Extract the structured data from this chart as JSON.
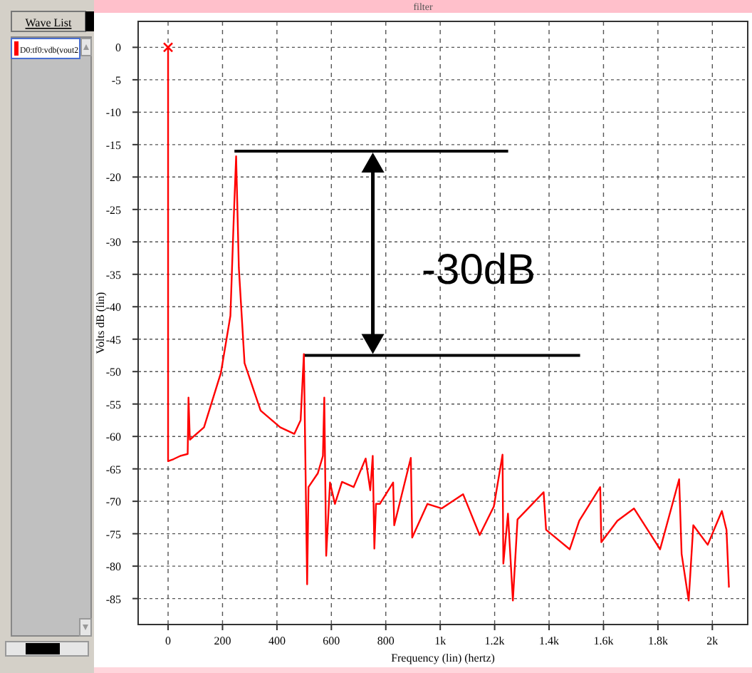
{
  "chart_data": {
    "type": "line",
    "title": "filter",
    "xlabel": "Frequency (lin) (hertz)",
    "ylabel": "Volts dB (lin)",
    "legend_title": "Wave List",
    "legend": "left",
    "grid": true,
    "marker": "none",
    "line_style": "solid",
    "xlim": [
      -110,
      2130
    ],
    "xticks": [
      0,
      200,
      400,
      600,
      800,
      {
        "value": 1000,
        "label": "1k"
      },
      {
        "value": 1200,
        "label": "1.2k"
      },
      {
        "value": 1400,
        "label": "1.4k"
      },
      {
        "value": 1600,
        "label": "1.6k"
      },
      {
        "value": 1800,
        "label": "1.8k"
      },
      {
        "value": 2000,
        "label": "2k"
      }
    ],
    "ylim": [
      -89,
      4
    ],
    "ref_lines": [
      {
        "axis": "y",
        "value": -16,
        "color": "#000000"
      },
      {
        "axis": "y",
        "value": -47.5,
        "color": "#000000"
      }
    ],
    "yticks": [
      0,
      -5,
      -10,
      -15,
      -20,
      -25,
      -30,
      -35,
      -40,
      -45,
      -50,
      -55,
      -60,
      -65,
      -70,
      -75,
      -80,
      -85
    ],
    "annotations": [
      "-30dB"
    ],
    "series": [
      {
        "name": "D0:tf0:vdb(vout2",
        "color": "#ff0000",
        "x": [
          0,
          0,
          20,
          45,
          72,
          75,
          80,
          132,
          194,
          229,
          241,
          250,
          260,
          281,
          340,
          412,
          464,
          487,
          499,
          511,
          516,
          550,
          569,
          574,
          581,
          595,
          613,
          639,
          682,
          726,
          743,
          752,
          758,
          764,
          778,
          827,
          831,
          892,
          897,
          953,
          1005,
          1084,
          1145,
          1197,
          1229,
          1232,
          1249,
          1267,
          1284,
          1380,
          1389,
          1476,
          1511,
          1588,
          1592,
          1651,
          1712,
          1808,
          1878,
          1887,
          1913,
          1930,
          1983,
          2035,
          2052,
          2061
        ],
        "values": [
          0,
          -63.8,
          -63.5,
          -63,
          -62.7,
          -54,
          -60.5,
          -58.6,
          -50.2,
          -41.4,
          -26.7,
          -16.8,
          -34,
          -48.7,
          -56,
          -58.6,
          -59.6,
          -57.5,
          -47.3,
          -82.8,
          -67.8,
          -65.7,
          -63,
          -54,
          -78.4,
          -67.1,
          -70.4,
          -67,
          -67.8,
          -63.4,
          -68.3,
          -63,
          -77.3,
          -70.4,
          -70.4,
          -67.1,
          -73.7,
          -63.3,
          -75.6,
          -70.4,
          -71.1,
          -68.9,
          -75.2,
          -70.8,
          -62.8,
          -79.6,
          -71.9,
          -85.3,
          -72.8,
          -68.6,
          -74.4,
          -77.4,
          -73,
          -67.8,
          -76.3,
          -73,
          -71.1,
          -77.4,
          -66.6,
          -78.1,
          -85.3,
          -73.7,
          -76.7,
          -71.5,
          -74.4,
          -83.3
        ]
      }
    ]
  }
}
